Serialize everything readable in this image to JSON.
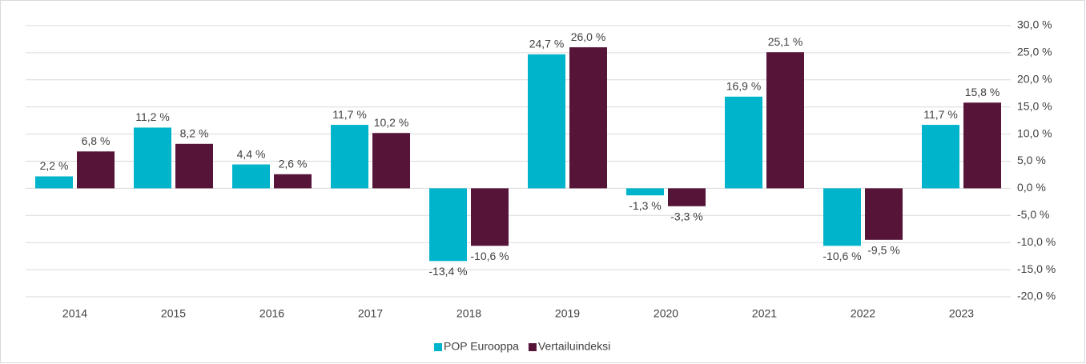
{
  "chart_data": {
    "type": "bar",
    "categories": [
      "2014",
      "2015",
      "2016",
      "2017",
      "2018",
      "2019",
      "2020",
      "2021",
      "2022",
      "2023"
    ],
    "series": [
      {
        "name": "POP Eurooppa",
        "color": "#00b4cc",
        "values": [
          2.2,
          11.2,
          4.4,
          11.7,
          -13.4,
          24.7,
          -1.3,
          16.9,
          -10.6,
          11.7
        ],
        "value_labels": [
          "2,2 %",
          "11,2 %",
          "4,4 %",
          "11,7 %",
          "-13,4 %",
          "24,7 %",
          "-1,3 %",
          "16,9 %",
          "-10,6 %",
          "11,7 %"
        ]
      },
      {
        "name": "Vertailuindeksi",
        "color": "#561439",
        "values": [
          6.8,
          8.2,
          2.6,
          10.2,
          -10.6,
          26.0,
          -3.3,
          25.1,
          -9.5,
          15.8
        ],
        "value_labels": [
          "6,8 %",
          "8,2 %",
          "2,6 %",
          "10,2 %",
          "-10,6 %",
          "26,0 %",
          "-3,3 %",
          "25,1 %",
          "-9,5 %",
          "15,8 %"
        ]
      }
    ],
    "ylim": [
      -20,
      30
    ],
    "yticks": [
      {
        "value": 30,
        "label": "30,0 %"
      },
      {
        "value": 25,
        "label": "25,0 %"
      },
      {
        "value": 20,
        "label": "20,0 %"
      },
      {
        "value": 15,
        "label": "15,0 %"
      },
      {
        "value": 10,
        "label": "10,0 %"
      },
      {
        "value": 5,
        "label": "5,0 %"
      },
      {
        "value": 0,
        "label": "0,0 %"
      },
      {
        "value": -5,
        "label": "-5,0 %"
      },
      {
        "value": -10,
        "label": "-10,0 %"
      },
      {
        "value": -15,
        "label": "-15,0 %"
      },
      {
        "value": -20,
        "label": "-20,0 %"
      }
    ],
    "grid": true,
    "y_axis_side": "right",
    "legend": "bottom"
  }
}
